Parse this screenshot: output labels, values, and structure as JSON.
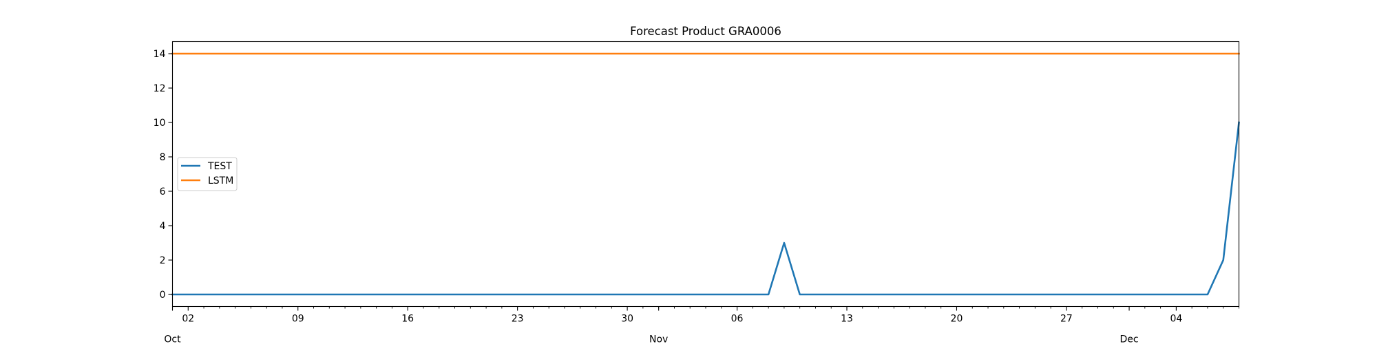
{
  "chart_data": {
    "type": "line",
    "title": "Forecast Product GRA0006",
    "xlabel": "",
    "ylabel": "",
    "x_start": "2022-10-01",
    "x": [
      "2022-10-01",
      "2022-10-02",
      "2022-10-03",
      "2022-10-04",
      "2022-10-05",
      "2022-10-06",
      "2022-10-07",
      "2022-10-08",
      "2022-10-09",
      "2022-10-10",
      "2022-10-11",
      "2022-10-12",
      "2022-10-13",
      "2022-10-14",
      "2022-10-15",
      "2022-10-16",
      "2022-10-17",
      "2022-10-18",
      "2022-10-19",
      "2022-10-20",
      "2022-10-21",
      "2022-10-22",
      "2022-10-23",
      "2022-10-24",
      "2022-10-25",
      "2022-10-26",
      "2022-10-27",
      "2022-10-28",
      "2022-10-29",
      "2022-10-30",
      "2022-10-31",
      "2022-11-01",
      "2022-11-02",
      "2022-11-03",
      "2022-11-04",
      "2022-11-05",
      "2022-11-06",
      "2022-11-07",
      "2022-11-08",
      "2022-11-09",
      "2022-11-10",
      "2022-11-11",
      "2022-11-12",
      "2022-11-13",
      "2022-11-14",
      "2022-11-15",
      "2022-11-16",
      "2022-11-17",
      "2022-11-18",
      "2022-11-19",
      "2022-11-20",
      "2022-11-21",
      "2022-11-22",
      "2022-11-23",
      "2022-11-24",
      "2022-11-25",
      "2022-11-26",
      "2022-11-27",
      "2022-11-28",
      "2022-11-29",
      "2022-11-30",
      "2022-12-01",
      "2022-12-02",
      "2022-12-03",
      "2022-12-04",
      "2022-12-05",
      "2022-12-06",
      "2022-12-07",
      "2022-12-08"
    ],
    "xlim": [
      "2022-10-01",
      "2022-12-08"
    ],
    "ylim": [
      -0.7,
      14.7
    ],
    "y_ticks": [
      0,
      2,
      4,
      6,
      8,
      10,
      12,
      14
    ],
    "x_major_ticks": [
      {
        "date": "2022-10-02",
        "label": "02"
      },
      {
        "date": "2022-10-09",
        "label": "09"
      },
      {
        "date": "2022-10-16",
        "label": "16"
      },
      {
        "date": "2022-10-23",
        "label": "23"
      },
      {
        "date": "2022-10-30",
        "label": "30"
      },
      {
        "date": "2022-11-06",
        "label": "06"
      },
      {
        "date": "2022-11-13",
        "label": "13"
      },
      {
        "date": "2022-11-20",
        "label": "20"
      },
      {
        "date": "2022-11-27",
        "label": "27"
      },
      {
        "date": "2022-12-04",
        "label": "04"
      }
    ],
    "x_month_ticks": [
      {
        "date": "2022-10-01",
        "label": "Oct"
      },
      {
        "date": "2022-11-01",
        "label": "Nov"
      },
      {
        "date": "2022-12-01",
        "label": "Dec"
      }
    ],
    "series": [
      {
        "name": "TEST",
        "color": "#1f77b4",
        "values": [
          0,
          0,
          0,
          0,
          0,
          0,
          0,
          0,
          0,
          0,
          0,
          0,
          0,
          0,
          0,
          0,
          0,
          0,
          0,
          0,
          0,
          0,
          0,
          0,
          0,
          0,
          0,
          0,
          0,
          0,
          0,
          0,
          0,
          0,
          0,
          0,
          0,
          0,
          0,
          3,
          0,
          0,
          0,
          0,
          0,
          0,
          0,
          0,
          0,
          0,
          0,
          0,
          0,
          0,
          0,
          0,
          0,
          0,
          0,
          0,
          0,
          0,
          0,
          0,
          0,
          0,
          0,
          2,
          10
        ]
      },
      {
        "name": "LSTM",
        "color": "#ff7f0e",
        "values": [
          14,
          14,
          14,
          14,
          14,
          14,
          14,
          14,
          14,
          14,
          14,
          14,
          14,
          14,
          14,
          14,
          14,
          14,
          14,
          14,
          14,
          14,
          14,
          14,
          14,
          14,
          14,
          14,
          14,
          14,
          14,
          14,
          14,
          14,
          14,
          14,
          14,
          14,
          14,
          14,
          14,
          14,
          14,
          14,
          14,
          14,
          14,
          14,
          14,
          14,
          14,
          14,
          14,
          14,
          14,
          14,
          14,
          14,
          14,
          14,
          14,
          14,
          14,
          14,
          14,
          14,
          14,
          14,
          14
        ]
      }
    ],
    "legend_position": "center-left",
    "grid": false
  }
}
